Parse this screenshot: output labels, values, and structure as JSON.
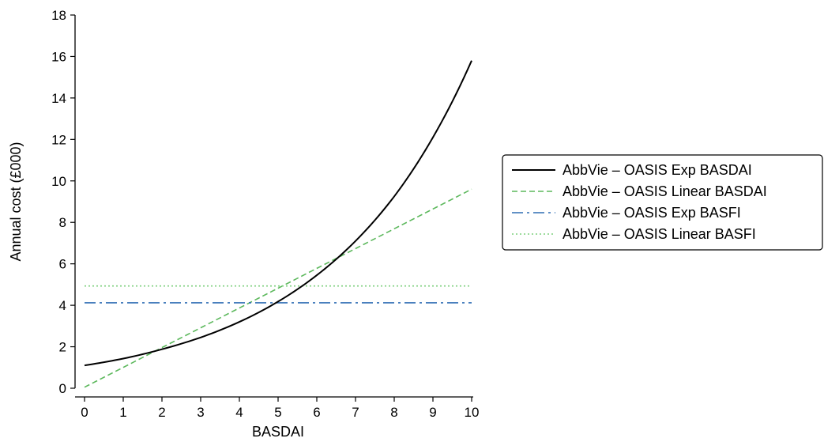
{
  "chart_data": {
    "type": "line",
    "xlabel": "BASDAI",
    "ylabel": "Annual cost (£000)",
    "xlim": [
      0,
      10
    ],
    "ylim": [
      0,
      18
    ],
    "xticks": [
      0,
      1,
      2,
      3,
      4,
      5,
      6,
      7,
      8,
      9,
      10
    ],
    "yticks": [
      0,
      2,
      4,
      6,
      8,
      10,
      12,
      14,
      16,
      18
    ],
    "grid": false,
    "legend_position": "right",
    "series": [
      {
        "name": "AbbVie – OASIS Exp BASDAI",
        "style": "solid",
        "color": "#000000",
        "x": [
          0,
          1,
          2,
          3,
          4,
          5,
          6,
          7,
          8,
          9,
          10
        ],
        "y": [
          1.1,
          1.43,
          1.88,
          2.45,
          3.2,
          4.18,
          5.45,
          7.1,
          9.25,
          12.1,
          15.8
        ]
      },
      {
        "name": "AbbVie – OASIS Linear BASDAI",
        "style": "dashed",
        "color": "#5cb85c",
        "x": [
          0,
          10
        ],
        "y": [
          0.05,
          9.6
        ]
      },
      {
        "name": "AbbVie – OASIS Exp BASFI",
        "style": "dashdot",
        "color": "#2e6db4",
        "x": [
          0,
          10
        ],
        "y": [
          4.12,
          4.12
        ]
      },
      {
        "name": "AbbVie – OASIS Linear BASFI",
        "style": "dotted",
        "color": "#7ccf7c",
        "x": [
          0,
          10
        ],
        "y": [
          4.93,
          4.93
        ]
      }
    ]
  }
}
